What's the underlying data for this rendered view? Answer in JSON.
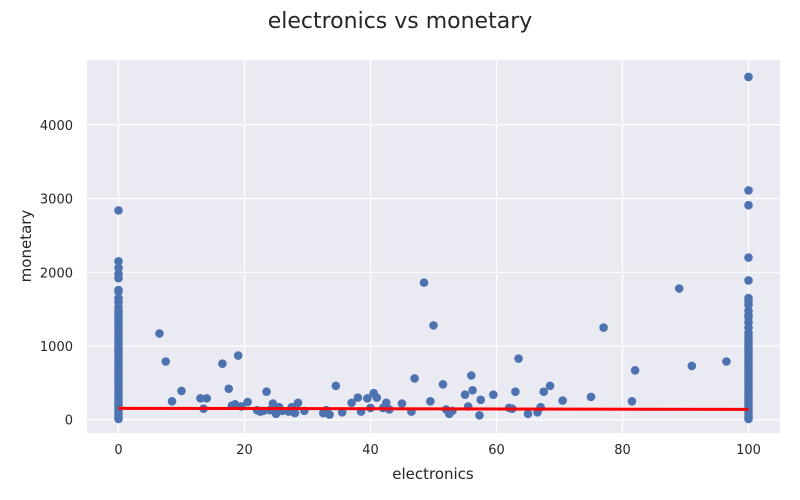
{
  "chart_data": {
    "type": "scatter",
    "title": "electronics vs monetary",
    "xlabel": "electronics",
    "ylabel": "monetary",
    "xlim": [
      -5,
      105
    ],
    "ylim": [
      -180,
      4880
    ],
    "xticks": [
      0,
      20,
      40,
      60,
      80,
      100
    ],
    "yticks": [
      0,
      1000,
      2000,
      3000,
      4000
    ],
    "grid": true,
    "colors": {
      "background": "#eaeaf2",
      "grid": "#ffffff",
      "points": "#4c72b0",
      "fit_line": "#ff0000"
    },
    "fit_line": {
      "x": [
        0,
        100
      ],
      "y": [
        155,
        140
      ]
    },
    "points": [
      [
        0,
        2840
      ],
      [
        0,
        2150
      ],
      [
        0,
        2060
      ],
      [
        0,
        1980
      ],
      [
        0,
        1920
      ],
      [
        0,
        1760
      ],
      [
        0,
        1740
      ],
      [
        0,
        1650
      ],
      [
        0,
        1600
      ],
      [
        0,
        1530
      ],
      [
        0,
        1480
      ],
      [
        0,
        1440
      ],
      [
        0,
        1400
      ],
      [
        0,
        1360
      ],
      [
        0,
        1320
      ],
      [
        0,
        1280
      ],
      [
        0,
        1240
      ],
      [
        0,
        1200
      ],
      [
        0,
        1160
      ],
      [
        0,
        1120
      ],
      [
        0,
        1080
      ],
      [
        0,
        1040
      ],
      [
        0,
        1000
      ],
      [
        0,
        960
      ],
      [
        0,
        920
      ],
      [
        0,
        880
      ],
      [
        0,
        840
      ],
      [
        0,
        800
      ],
      [
        0,
        760
      ],
      [
        0,
        720
      ],
      [
        0,
        680
      ],
      [
        0,
        640
      ],
      [
        0,
        600
      ],
      [
        0,
        560
      ],
      [
        0,
        520
      ],
      [
        0,
        480
      ],
      [
        0,
        440
      ],
      [
        0,
        400
      ],
      [
        0,
        360
      ],
      [
        0,
        320
      ],
      [
        0,
        280
      ],
      [
        0,
        240
      ],
      [
        0,
        200
      ],
      [
        0,
        160
      ],
      [
        0,
        120
      ],
      [
        0,
        80
      ],
      [
        0,
        40
      ],
      [
        0,
        10
      ],
      [
        6.5,
        1170
      ],
      [
        7.5,
        790
      ],
      [
        8.5,
        250
      ],
      [
        10,
        390
      ],
      [
        13,
        290
      ],
      [
        13.5,
        150
      ],
      [
        14,
        290
      ],
      [
        16.5,
        760
      ],
      [
        17.5,
        420
      ],
      [
        18,
        190
      ],
      [
        18.5,
        210
      ],
      [
        19,
        870
      ],
      [
        19.5,
        180
      ],
      [
        20.5,
        240
      ],
      [
        22,
        130
      ],
      [
        22.5,
        110
      ],
      [
        23,
        120
      ],
      [
        23.5,
        380
      ],
      [
        24,
        130
      ],
      [
        24.5,
        220
      ],
      [
        25,
        80
      ],
      [
        25.5,
        170
      ],
      [
        26,
        120
      ],
      [
        27,
        110
      ],
      [
        27.5,
        170
      ],
      [
        28,
        90
      ],
      [
        28.5,
        230
      ],
      [
        29.5,
        120
      ],
      [
        32.5,
        90
      ],
      [
        33,
        130
      ],
      [
        33.5,
        70
      ],
      [
        34.5,
        460
      ],
      [
        35.5,
        100
      ],
      [
        37,
        230
      ],
      [
        38,
        300
      ],
      [
        38.5,
        110
      ],
      [
        39.5,
        290
      ],
      [
        40,
        160
      ],
      [
        40.5,
        360
      ],
      [
        41,
        300
      ],
      [
        42,
        160
      ],
      [
        42.5,
        230
      ],
      [
        43,
        140
      ],
      [
        45,
        220
      ],
      [
        46.5,
        110
      ],
      [
        47,
        560
      ],
      [
        48.5,
        1860
      ],
      [
        49.5,
        250
      ],
      [
        50,
        1280
      ],
      [
        51.5,
        480
      ],
      [
        52,
        140
      ],
      [
        52.5,
        80
      ],
      [
        53,
        120
      ],
      [
        55,
        340
      ],
      [
        55.5,
        180
      ],
      [
        56,
        600
      ],
      [
        56.2,
        400
      ],
      [
        57.5,
        270
      ],
      [
        57.3,
        60
      ],
      [
        59.5,
        340
      ],
      [
        62,
        160
      ],
      [
        62.5,
        150
      ],
      [
        63,
        380
      ],
      [
        63.5,
        830
      ],
      [
        65,
        80
      ],
      [
        66.5,
        100
      ],
      [
        67,
        170
      ],
      [
        67.5,
        380
      ],
      [
        68.5,
        460
      ],
      [
        70.5,
        260
      ],
      [
        75,
        310
      ],
      [
        77,
        1250
      ],
      [
        81.5,
        250
      ],
      [
        82,
        670
      ],
      [
        89,
        1780
      ],
      [
        91,
        730
      ],
      [
        96.5,
        790
      ],
      [
        100,
        4650
      ],
      [
        100,
        3110
      ],
      [
        100,
        2910
      ],
      [
        100,
        2200
      ],
      [
        100,
        1890
      ],
      [
        100,
        1650
      ],
      [
        100,
        1610
      ],
      [
        100,
        1560
      ],
      [
        100,
        1480
      ],
      [
        100,
        1420
      ],
      [
        100,
        1390
      ],
      [
        100,
        1320
      ],
      [
        100,
        1250
      ],
      [
        100,
        1180
      ],
      [
        100,
        1130
      ],
      [
        100,
        1080
      ],
      [
        100,
        1050
      ],
      [
        100,
        1000
      ],
      [
        100,
        960
      ],
      [
        100,
        920
      ],
      [
        100,
        880
      ],
      [
        100,
        840
      ],
      [
        100,
        800
      ],
      [
        100,
        760
      ],
      [
        100,
        720
      ],
      [
        100,
        680
      ],
      [
        100,
        640
      ],
      [
        100,
        600
      ],
      [
        100,
        560
      ],
      [
        100,
        520
      ],
      [
        100,
        480
      ],
      [
        100,
        440
      ],
      [
        100,
        400
      ],
      [
        100,
        360
      ],
      [
        100,
        320
      ],
      [
        100,
        280
      ],
      [
        100,
        240
      ],
      [
        100,
        200
      ],
      [
        100,
        160
      ],
      [
        100,
        120
      ],
      [
        100,
        80
      ],
      [
        100,
        40
      ],
      [
        100,
        10
      ]
    ]
  }
}
